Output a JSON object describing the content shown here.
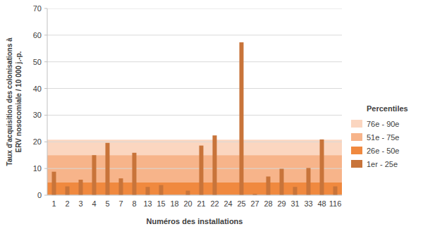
{
  "chart_data": {
    "type": "bar",
    "xlabel": "Numéros des installations",
    "ylabel": [
      "Taux d'acquisition des colonisations à",
      "ERV nosocomiale / 10 000 j.-p."
    ],
    "categories": [
      "1",
      "2",
      "3",
      "4",
      "5",
      "7",
      "8",
      "13",
      "15",
      "18",
      "20",
      "21",
      "22",
      "24",
      "25",
      "27",
      "28",
      "29",
      "31",
      "33",
      "48",
      "116"
    ],
    "values": [
      8.8,
      3.3,
      5.8,
      15,
      19.6,
      6.3,
      15.9,
      3.1,
      3.8,
      0,
      1.7,
      18.6,
      22.4,
      0,
      57.3,
      0.5,
      7.0,
      9.9,
      3.1,
      10.2,
      20.9,
      3.3
    ],
    "color": "#c8743a",
    "ylim": [
      0,
      70
    ],
    "yticks": [
      0,
      10,
      20,
      30,
      40,
      50,
      60,
      70
    ],
    "grid": true,
    "legend": "right",
    "legend_title": "Percentiles",
    "percentiles": [
      {
        "label": "76e - 90e",
        "from": 15,
        "to": 20.8,
        "color": "#fbd6c0"
      },
      {
        "label": "51e - 75e",
        "from": 4.8,
        "to": 15,
        "color": "#f7b48a"
      },
      {
        "label": "26e - 50e",
        "from": 0,
        "to": 4.8,
        "color": "#f0893f"
      },
      {
        "label": "1er - 25e",
        "from": 0,
        "to": 0,
        "color": "#c8743a"
      }
    ]
  }
}
